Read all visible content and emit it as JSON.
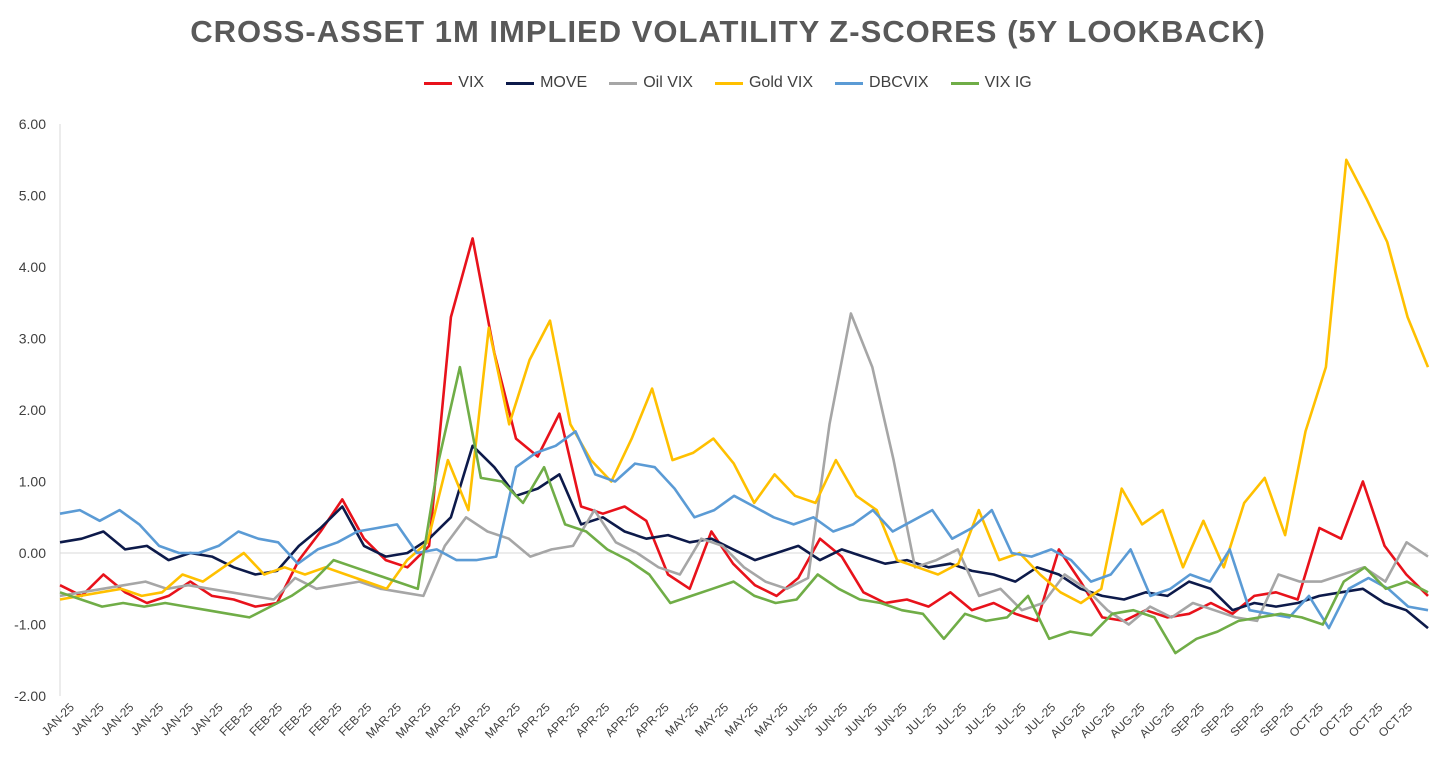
{
  "chart_data": {
    "type": "line",
    "title": "CROSS-ASSET 1M IMPLIED VOLATILITY Z-SCORES (5Y LOOKBACK)",
    "ylim": [
      -2,
      6
    ],
    "yticks": [
      "6.00",
      "5.00",
      "4.00",
      "3.00",
      "2.00",
      "1.00",
      "0.00",
      "-1.00",
      "-2.00"
    ],
    "xtick_labels": [
      "JAN-25",
      "JAN-25",
      "JAN-25",
      "JAN-25",
      "JAN-25",
      "JAN-25",
      "FEB-25",
      "FEB-25",
      "FEB-25",
      "FEB-25",
      "FEB-25",
      "MAR-25",
      "MAR-25",
      "MAR-25",
      "MAR-25",
      "MAR-25",
      "APR-25",
      "APR-25",
      "APR-25",
      "APR-25",
      "APR-25",
      "MAY-25",
      "MAY-25",
      "MAY-25",
      "MAY-25",
      "JUN-25",
      "JUN-25",
      "JUN-25",
      "JUN-25",
      "JUL-25",
      "JUL-25",
      "JUL-25",
      "JUL-25",
      "JUL-25",
      "AUG-25",
      "AUG-25",
      "AUG-25",
      "AUG-25",
      "SEP-25",
      "SEP-25",
      "SEP-25",
      "SEP-25",
      "OCT-25",
      "OCT-25",
      "OCT-25",
      "OCT-25"
    ],
    "grid": false,
    "legend_position": "top",
    "series": [
      {
        "name": "VIX",
        "color": "#e8121b",
        "values": [
          -0.45,
          -0.6,
          -0.3,
          -0.55,
          -0.7,
          -0.6,
          -0.4,
          -0.6,
          -0.65,
          -0.75,
          -0.7,
          -0.1,
          0.3,
          0.75,
          0.2,
          -0.1,
          -0.2,
          0.1,
          3.3,
          4.4,
          2.8,
          1.6,
          1.35,
          1.95,
          0.65,
          0.55,
          0.65,
          0.45,
          -0.3,
          -0.5,
          0.3,
          -0.15,
          -0.45,
          -0.6,
          -0.35,
          0.2,
          -0.05,
          -0.55,
          -0.7,
          -0.65,
          -0.75,
          -0.55,
          -0.8,
          -0.7,
          -0.85,
          -0.95,
          0.05,
          -0.4,
          -0.9,
          -0.95,
          -0.8,
          -0.9,
          -0.85,
          -0.7,
          -0.85,
          -0.6,
          -0.55,
          -0.65,
          0.35,
          0.2,
          1.0,
          0.1,
          -0.3,
          -0.6
        ]
      },
      {
        "name": "MOVE",
        "color": "#0d1a4a",
        "values": [
          0.15,
          0.2,
          0.3,
          0.05,
          0.1,
          -0.1,
          0.0,
          -0.05,
          -0.2,
          -0.3,
          -0.25,
          0.1,
          0.35,
          0.65,
          0.1,
          -0.05,
          0.0,
          0.2,
          0.5,
          1.5,
          1.2,
          0.8,
          0.9,
          1.1,
          0.4,
          0.5,
          0.3,
          0.2,
          0.25,
          0.15,
          0.2,
          0.05,
          -0.1,
          0.0,
          0.1,
          -0.1,
          0.05,
          -0.05,
          -0.15,
          -0.1,
          -0.2,
          -0.15,
          -0.25,
          -0.3,
          -0.4,
          -0.2,
          -0.3,
          -0.5,
          -0.6,
          -0.65,
          -0.55,
          -0.6,
          -0.4,
          -0.5,
          -0.8,
          -0.7,
          -0.75,
          -0.7,
          -0.6,
          -0.55,
          -0.5,
          -0.7,
          -0.8,
          -1.05
        ]
      },
      {
        "name": "Oil VIX",
        "color": "#a6a6a6",
        "values": [
          -0.6,
          -0.55,
          -0.5,
          -0.45,
          -0.4,
          -0.5,
          -0.45,
          -0.5,
          -0.55,
          -0.6,
          -0.65,
          -0.35,
          -0.5,
          -0.45,
          -0.4,
          -0.5,
          -0.55,
          -0.6,
          0.1,
          0.5,
          0.3,
          0.2,
          -0.05,
          0.05,
          0.1,
          0.6,
          0.15,
          0.0,
          -0.2,
          -0.3,
          0.2,
          0.1,
          -0.2,
          -0.4,
          -0.5,
          -0.35,
          1.8,
          3.35,
          2.6,
          1.3,
          -0.2,
          -0.1,
          0.05,
          -0.6,
          -0.5,
          -0.8,
          -0.7,
          -0.3,
          -0.5,
          -0.8,
          -1.0,
          -0.75,
          -0.9,
          -0.7,
          -0.8,
          -0.9,
          -0.95,
          -0.3,
          -0.4,
          -0.4,
          -0.3,
          -0.2,
          -0.4,
          0.15,
          -0.05
        ]
      },
      {
        "name": "Gold VIX",
        "color": "#ffc000",
        "values": [
          -0.65,
          -0.6,
          -0.55,
          -0.5,
          -0.6,
          -0.55,
          -0.3,
          -0.4,
          -0.2,
          0.0,
          -0.3,
          -0.2,
          -0.3,
          -0.2,
          -0.3,
          -0.4,
          -0.5,
          -0.1,
          0.15,
          1.3,
          0.6,
          3.15,
          1.8,
          2.7,
          3.25,
          1.8,
          1.3,
          1.0,
          1.6,
          2.3,
          1.3,
          1.4,
          1.6,
          1.25,
          0.7,
          1.1,
          0.8,
          0.7,
          1.3,
          0.8,
          0.6,
          -0.1,
          -0.2,
          -0.3,
          -0.15,
          0.6,
          -0.1,
          0.0,
          -0.3,
          -0.55,
          -0.7,
          -0.5,
          0.9,
          0.4,
          0.6,
          -0.2,
          0.45,
          -0.2,
          0.7,
          1.05,
          0.25,
          1.7,
          2.6,
          5.5,
          4.95,
          4.35,
          3.3,
          2.6
        ]
      },
      {
        "name": "DBCVIX",
        "color": "#5b9bd5",
        "values": [
          0.55,
          0.6,
          0.45,
          0.6,
          0.4,
          0.1,
          0.0,
          0.0,
          0.1,
          0.3,
          0.2,
          0.15,
          -0.15,
          0.05,
          0.15,
          0.3,
          0.35,
          0.4,
          0.0,
          0.05,
          -0.1,
          -0.1,
          -0.05,
          1.2,
          1.4,
          1.5,
          1.7,
          1.1,
          1.0,
          1.25,
          1.2,
          0.9,
          0.5,
          0.6,
          0.8,
          0.65,
          0.5,
          0.4,
          0.5,
          0.3,
          0.4,
          0.6,
          0.3,
          0.45,
          0.6,
          0.2,
          0.35,
          0.6,
          0.0,
          -0.05,
          0.05,
          -0.1,
          -0.4,
          -0.3,
          0.05,
          -0.6,
          -0.5,
          -0.3,
          -0.4,
          0.05,
          -0.8,
          -0.85,
          -0.9,
          -0.6,
          -1.05,
          -0.5,
          -0.35,
          -0.5,
          -0.75,
          -0.8
        ]
      },
      {
        "name": "VIX IG",
        "color": "#70ad47",
        "values": [
          -0.55,
          -0.65,
          -0.75,
          -0.7,
          -0.75,
          -0.7,
          -0.75,
          -0.8,
          -0.85,
          -0.9,
          -0.75,
          -0.6,
          -0.4,
          -0.1,
          -0.2,
          -0.3,
          -0.4,
          -0.5,
          1.3,
          2.6,
          1.05,
          1.0,
          0.7,
          1.2,
          0.4,
          0.3,
          0.05,
          -0.1,
          -0.3,
          -0.7,
          -0.6,
          -0.5,
          -0.4,
          -0.6,
          -0.7,
          -0.65,
          -0.3,
          -0.5,
          -0.65,
          -0.7,
          -0.8,
          -0.85,
          -1.2,
          -0.85,
          -0.95,
          -0.9,
          -0.6,
          -1.2,
          -1.1,
          -1.15,
          -0.85,
          -0.8,
          -0.9,
          -1.4,
          -1.2,
          -1.1,
          -0.95,
          -0.9,
          -0.85,
          -0.9,
          -1.0,
          -0.4,
          -0.2,
          -0.5,
          -0.4,
          -0.55
        ]
      }
    ]
  }
}
